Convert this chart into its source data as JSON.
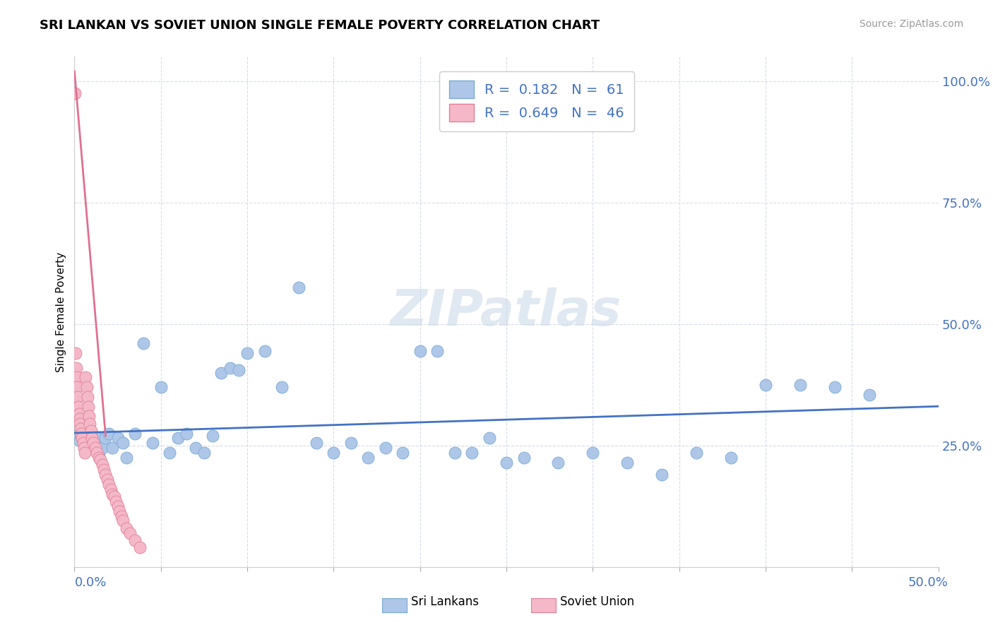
{
  "title": "SRI LANKAN VS SOVIET UNION SINGLE FEMALE POVERTY CORRELATION CHART",
  "source": "Source: ZipAtlas.com",
  "ylabel": "Single Female Poverty",
  "xmin": 0.0,
  "xmax": 0.5,
  "ymin": 0.0,
  "ymax": 1.05,
  "sri_lankan_R": 0.182,
  "sri_lankan_N": 61,
  "soviet_union_R": 0.649,
  "soviet_union_N": 46,
  "sri_lankan_color": "#aec6e8",
  "sri_lankan_edge": "#7aaad0",
  "soviet_union_color": "#f4b8c8",
  "soviet_union_edge": "#e08098",
  "sri_lankan_line_color": "#4472c4",
  "soviet_union_line_color": "#e07090",
  "background_color": "#ffffff",
  "grid_color": "#d8dce8",
  "legend_blue": "#4472c4",
  "sri_lankans_label": "Sri Lankans",
  "soviet_union_label": "Soviet Union",
  "sri_lankans_x": [
    0.001,
    0.002,
    0.003,
    0.004,
    0.005,
    0.006,
    0.007,
    0.008,
    0.009,
    0.01,
    0.011,
    0.012,
    0.013,
    0.014,
    0.016,
    0.018,
    0.02,
    0.022,
    0.025,
    0.028,
    0.03,
    0.035,
    0.04,
    0.045,
    0.05,
    0.055,
    0.06,
    0.065,
    0.07,
    0.075,
    0.08,
    0.085,
    0.09,
    0.095,
    0.1,
    0.11,
    0.12,
    0.13,
    0.14,
    0.15,
    0.16,
    0.17,
    0.18,
    0.19,
    0.2,
    0.21,
    0.22,
    0.23,
    0.24,
    0.25,
    0.26,
    0.28,
    0.3,
    0.32,
    0.34,
    0.36,
    0.38,
    0.4,
    0.42,
    0.44,
    0.46
  ],
  "sri_lankans_y": [
    0.27,
    0.265,
    0.26,
    0.27,
    0.275,
    0.265,
    0.26,
    0.27,
    0.265,
    0.275,
    0.255,
    0.245,
    0.265,
    0.235,
    0.245,
    0.265,
    0.275,
    0.245,
    0.265,
    0.255,
    0.225,
    0.275,
    0.46,
    0.255,
    0.37,
    0.235,
    0.265,
    0.275,
    0.245,
    0.235,
    0.27,
    0.4,
    0.41,
    0.405,
    0.44,
    0.445,
    0.37,
    0.575,
    0.255,
    0.235,
    0.255,
    0.225,
    0.245,
    0.235,
    0.445,
    0.445,
    0.235,
    0.235,
    0.265,
    0.215,
    0.225,
    0.215,
    0.235,
    0.215,
    0.19,
    0.235,
    0.225,
    0.375,
    0.375,
    0.37,
    0.355
  ],
  "soviet_union_x": [
    0.0004,
    0.0008,
    0.001,
    0.0013,
    0.0015,
    0.002,
    0.0022,
    0.0025,
    0.003,
    0.0032,
    0.0035,
    0.004,
    0.0045,
    0.005,
    0.0055,
    0.006,
    0.0065,
    0.007,
    0.0075,
    0.008,
    0.0085,
    0.009,
    0.0095,
    0.01,
    0.011,
    0.012,
    0.013,
    0.014,
    0.015,
    0.016,
    0.017,
    0.018,
    0.019,
    0.02,
    0.021,
    0.022,
    0.023,
    0.024,
    0.025,
    0.026,
    0.027,
    0.028,
    0.03,
    0.032,
    0.035,
    0.038
  ],
  "soviet_union_y": [
    0.975,
    0.44,
    0.41,
    0.39,
    0.37,
    0.35,
    0.33,
    0.315,
    0.305,
    0.295,
    0.285,
    0.275,
    0.265,
    0.255,
    0.245,
    0.235,
    0.39,
    0.37,
    0.35,
    0.33,
    0.31,
    0.295,
    0.28,
    0.265,
    0.255,
    0.245,
    0.235,
    0.225,
    0.22,
    0.21,
    0.2,
    0.19,
    0.18,
    0.17,
    0.16,
    0.15,
    0.145,
    0.135,
    0.125,
    0.115,
    0.105,
    0.095,
    0.08,
    0.07,
    0.055,
    0.04
  ],
  "sov_line_x0": 0.0,
  "sov_line_y0": 1.02,
  "sov_line_x1": 0.018,
  "sov_line_y1": 0.27
}
